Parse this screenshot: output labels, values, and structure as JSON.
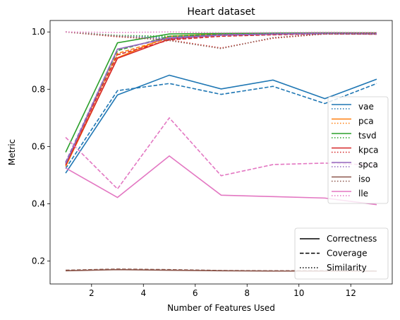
{
  "chart_data": {
    "type": "line",
    "title": "Heart dataset",
    "xlabel": "Number of Features Used",
    "ylabel": "Metric",
    "xlim": [
      0.4,
      13.6
    ],
    "ylim": [
      0.12,
      1.04
    ],
    "xticks": [
      2,
      4,
      6,
      8,
      10,
      12
    ],
    "yticks": [
      0.2,
      0.4,
      0.6,
      0.8,
      1.0
    ],
    "ytick_labels": [
      "0.2",
      "0.4",
      "0.6",
      "0.8",
      "1.0"
    ],
    "grid": false,
    "x": [
      1,
      3,
      5,
      7,
      9,
      11,
      13
    ],
    "series": [
      {
        "name": "vae",
        "color": "#1f77b4",
        "correctness": [
          0.507,
          0.78,
          0.849,
          0.801,
          0.832,
          0.767,
          0.835
        ],
        "coverage": [
          0.523,
          0.795,
          0.82,
          0.782,
          0.81,
          0.75,
          0.82
        ],
        "similarity": [
          1.0,
          0.985,
          0.98,
          0.993,
          0.995,
          0.997,
          0.995
        ]
      },
      {
        "name": "pca",
        "color": "#ff7f0e",
        "correctness": [
          0.53,
          0.91,
          0.985,
          0.993,
          0.995,
          0.997,
          0.995
        ],
        "coverage": [
          0.54,
          0.925,
          0.978,
          0.99,
          0.993,
          0.995,
          0.993
        ],
        "similarity": [
          1.0,
          0.985,
          0.975,
          0.99,
          0.993,
          0.995,
          0.993
        ]
      },
      {
        "name": "tsvd",
        "color": "#2ca02c",
        "correctness": [
          0.58,
          0.962,
          0.993,
          0.995,
          0.996,
          0.997,
          0.997
        ],
        "coverage": [
          0.545,
          0.935,
          0.985,
          0.992,
          0.994,
          0.995,
          0.994
        ],
        "similarity": [
          1.0,
          0.988,
          0.985,
          0.992,
          0.994,
          0.996,
          0.995
        ]
      },
      {
        "name": "kpca",
        "color": "#d62728",
        "correctness": [
          0.535,
          0.908,
          0.975,
          0.99,
          0.992,
          0.995,
          0.995
        ],
        "coverage": [
          0.545,
          0.92,
          0.972,
          0.985,
          0.99,
          0.993,
          0.992
        ],
        "similarity": [
          1.0,
          0.983,
          0.972,
          0.944,
          0.978,
          0.993,
          0.993
        ]
      },
      {
        "name": "spca",
        "color": "#9467bd",
        "correctness": [
          0.54,
          0.94,
          0.98,
          0.99,
          0.993,
          0.995,
          0.994
        ],
        "coverage": [
          0.545,
          0.94,
          0.978,
          0.988,
          0.992,
          0.994,
          0.993
        ],
        "similarity": [
          1.0,
          0.986,
          0.975,
          0.99,
          0.993,
          0.995,
          0.993
        ]
      },
      {
        "name": "iso",
        "color": "#8c564b",
        "correctness": [
          0.166,
          0.17,
          0.168,
          0.166,
          0.165,
          0.165,
          0.165
        ],
        "coverage": [
          0.168,
          0.172,
          0.17,
          0.167,
          0.166,
          0.166,
          0.165
        ],
        "similarity": [
          1.0,
          0.985,
          0.97,
          0.942,
          0.98,
          0.993,
          0.993
        ]
      },
      {
        "name": "lle",
        "color": "#e377c2",
        "correctness": [
          0.525,
          0.422,
          0.567,
          0.43,
          0.425,
          0.42,
          0.397
        ],
        "coverage": [
          0.632,
          0.452,
          0.7,
          0.498,
          0.537,
          0.542,
          0.535
        ],
        "similarity": [
          1.0,
          0.998,
          1.0,
          0.997,
          0.998,
          0.999,
          0.998
        ]
      }
    ],
    "style_legend": [
      {
        "label": "Correctness",
        "dash": "solid"
      },
      {
        "label": "Coverage",
        "dash": "dashed"
      },
      {
        "label": "Similarity",
        "dash": "dotted"
      }
    ],
    "legend_placement": "right"
  }
}
